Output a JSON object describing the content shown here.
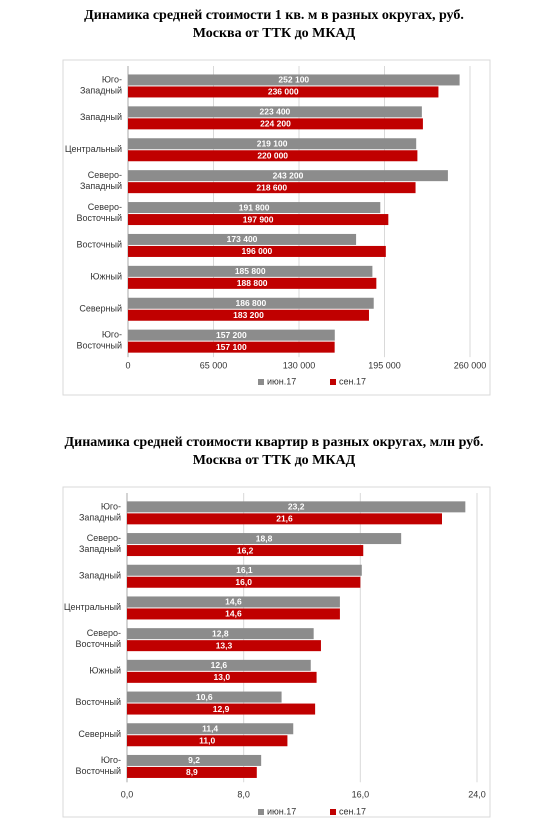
{
  "chart_data": [
    {
      "type": "bar",
      "orientation": "horizontal",
      "title": "Динамика средней стоимости 1 кв. м в разных округах, руб.",
      "subtitle": "Москва от ТТК до МКАД",
      "categories": [
        "Юго-\nЗападный",
        "Западный",
        "Центральный",
        "Северо-\nЗападный",
        "Северо-\nВосточный",
        "Восточный",
        "Южный",
        "Северный",
        "Юго-\nВосточный"
      ],
      "series": [
        {
          "name": "июн.17",
          "color": "#8c8c8c",
          "values": [
            252100,
            223400,
            219100,
            243200,
            191800,
            173400,
            185800,
            186800,
            157200
          ],
          "value_labels": [
            "252 100",
            "223 400",
            "219 100",
            "243 200",
            "191 800",
            "173 400",
            "185 800",
            "186 800",
            "157 200"
          ]
        },
        {
          "name": "сен.17",
          "color": "#c00000",
          "values": [
            236000,
            224200,
            220000,
            218600,
            197900,
            196000,
            188800,
            183200,
            157100
          ],
          "value_labels": [
            "236 000",
            "224 200",
            "220 000",
            "218 600",
            "197 900",
            "196 000",
            "188 800",
            "183 200",
            "157 100"
          ]
        }
      ],
      "xlim": [
        0,
        260000
      ],
      "xticks": [
        0,
        {
          "value": 65000,
          "label": "65 000"
        },
        {
          "value": 130000,
          "label": "130 000"
        },
        {
          "value": 195000,
          "label": "195 000"
        },
        {
          "value": 260000,
          "label": "260 000"
        }
      ],
      "grid": true,
      "legend": "bottom"
    },
    {
      "type": "bar",
      "orientation": "horizontal",
      "title": "Динамика средней стоимости квартир в разных округах, млн руб.",
      "subtitle": "Москва от ТТК до МКАД",
      "categories": [
        "Юго-\nЗападный",
        "Северо-\nЗападный",
        "Западный",
        "Центральный",
        "Северо-\nВосточный",
        "Южный",
        "Восточный",
        "Северный",
        "Юго-\nВосточный"
      ],
      "series": [
        {
          "name": "июн.17",
          "color": "#8c8c8c",
          "values": [
            23.2,
            18.8,
            16.1,
            14.6,
            12.8,
            12.6,
            10.6,
            11.4,
            9.2
          ],
          "value_labels": [
            "23,2",
            "18,8",
            "16,1",
            "14,6",
            "12,8",
            "12,6",
            "10,6",
            "11,4",
            "9,2"
          ]
        },
        {
          "name": "сен.17",
          "color": "#c00000",
          "values": [
            21.6,
            16.2,
            16.0,
            14.6,
            13.3,
            13.0,
            12.9,
            11.0,
            8.9
          ],
          "value_labels": [
            "21,6",
            "16,2",
            "16,0",
            "14,6",
            "13,3",
            "13,0",
            "12,9",
            "11,0",
            "8,9"
          ]
        }
      ],
      "xlim": [
        0,
        24
      ],
      "xticks": [
        {
          "value": 0,
          "label": "0,0"
        },
        {
          "value": 8,
          "label": "8,0"
        },
        {
          "value": 16,
          "label": "16,0"
        },
        {
          "value": 24,
          "label": "24,0"
        }
      ],
      "grid": true,
      "legend": "bottom"
    }
  ]
}
